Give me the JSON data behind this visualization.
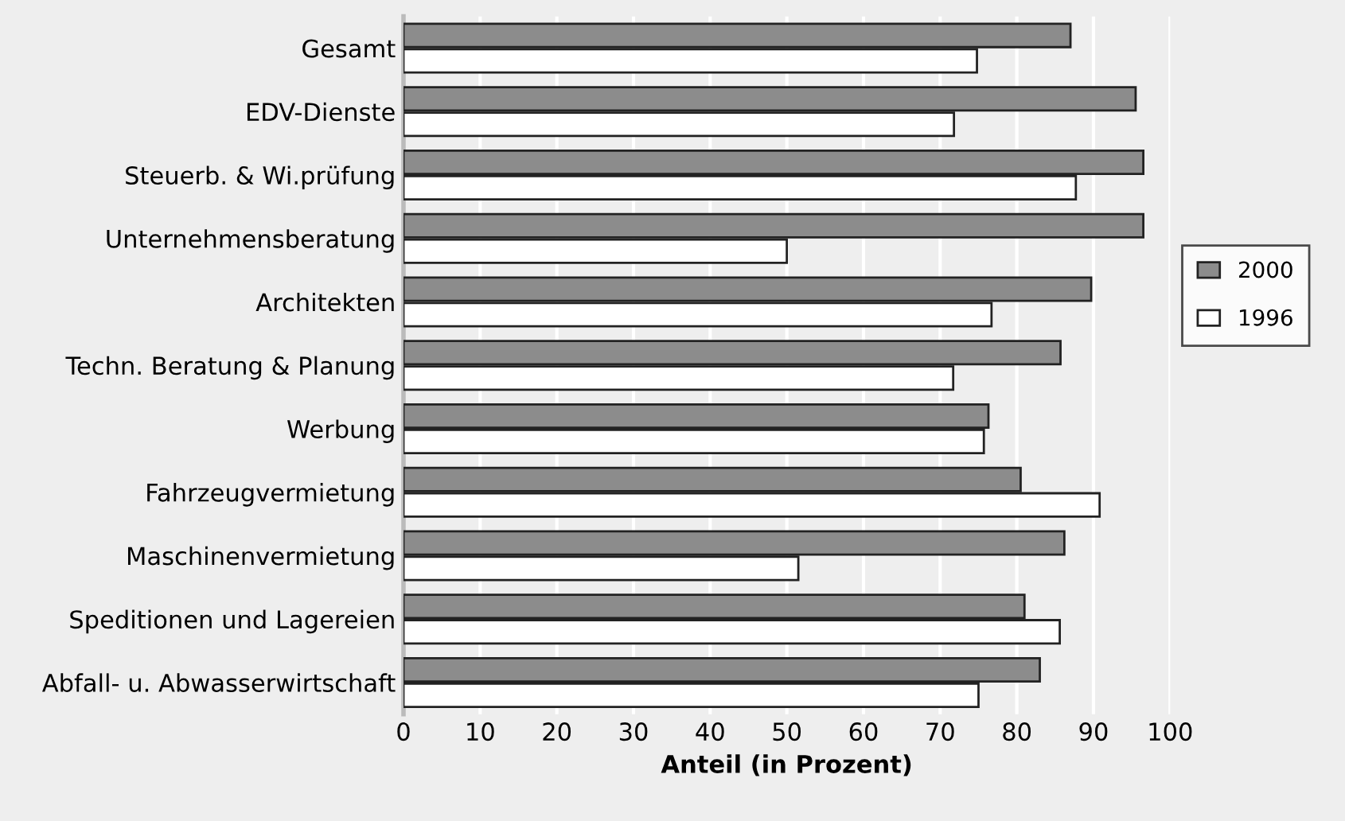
{
  "chart_data": {
    "type": "bar",
    "orientation": "horizontal",
    "xlabel": "Anteil (in Prozent)",
    "categories": [
      "Gesamt",
      "EDV-Dienste",
      "Steuerb. & Wi.prüfung",
      "Unternehmensberatung",
      "Architekten",
      "Techn. Beratung & Planung",
      "Werbung",
      "Fahrzeugvermietung",
      "Maschinenvermietung",
      "Speditionen und Lagereien",
      "Abfall- u. Abwasserwirtschaft"
    ],
    "series": [
      {
        "name": "2000",
        "color": "#8c8c8c",
        "values": [
          87,
          95.5,
          96.5,
          96.5,
          89.7,
          85.7,
          76.3,
          80.5,
          86.2,
          81,
          83
        ]
      },
      {
        "name": "1996",
        "color": "#ffffff",
        "values": [
          74.8,
          71.8,
          87.7,
          50,
          76.7,
          71.7,
          75.7,
          90.8,
          51.5,
          85.6,
          75
        ]
      }
    ],
    "xlim": [
      0,
      100
    ],
    "xticks": [
      0,
      10,
      20,
      30,
      40,
      50,
      60,
      70,
      80,
      90,
      100
    ],
    "grid": "x",
    "legend": "right"
  }
}
